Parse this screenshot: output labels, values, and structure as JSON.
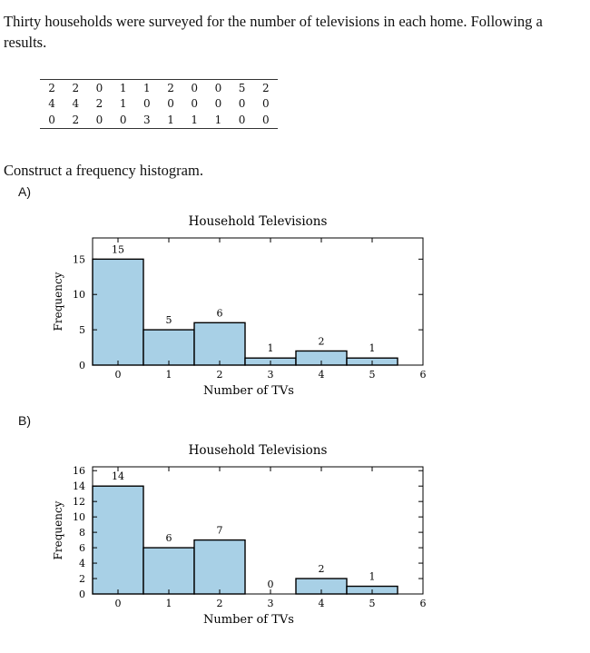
{
  "question": {
    "line1": "Thirty households were surveyed for the number of televisions in each home. Following a",
    "line2": "results.",
    "prompt": "Construct a frequency histogram."
  },
  "table": {
    "rows": [
      [
        "2",
        "2",
        "0",
        "1",
        "1",
        "2",
        "0",
        "0",
        "5",
        "2"
      ],
      [
        "4",
        "4",
        "2",
        "1",
        "0",
        "0",
        "0",
        "0",
        "0",
        "0"
      ],
      [
        "0",
        "2",
        "0",
        "0",
        "3",
        "1",
        "1",
        "1",
        "0",
        "0"
      ]
    ]
  },
  "options": [
    {
      "label": "A)"
    },
    {
      "label": "B)"
    }
  ],
  "chart_data": [
    {
      "type": "bar",
      "title": "Household Televisions",
      "xlabel": "Number of TVs",
      "ylabel": "Frequency",
      "categories": [
        "0",
        "1",
        "2",
        "3",
        "4",
        "5"
      ],
      "values": [
        15,
        5,
        6,
        1,
        2,
        1
      ],
      "data_labels": [
        "15",
        "5",
        "6",
        "1",
        "2",
        "1"
      ],
      "x_ticks": [
        "0",
        "1",
        "2",
        "3",
        "4",
        "5",
        "6"
      ],
      "y_ticks": [
        0,
        5,
        10,
        15
      ],
      "ylim": [
        0,
        18
      ],
      "xlim": [
        -0.5,
        6
      ],
      "bar_color": "#a8d0e6",
      "grid": false
    },
    {
      "type": "bar",
      "title": "Household Televisions",
      "xlabel": "Number of TVs",
      "ylabel": "Frequency",
      "categories": [
        "0",
        "1",
        "2",
        "3",
        "4",
        "5"
      ],
      "values": [
        14,
        6,
        7,
        0,
        2,
        1
      ],
      "data_labels": [
        "14",
        "6",
        "7",
        "0",
        "2",
        "1"
      ],
      "x_ticks": [
        "0",
        "1",
        "2",
        "3",
        "4",
        "5",
        "6"
      ],
      "y_ticks": [
        0,
        2,
        4,
        6,
        8,
        10,
        12,
        14,
        16
      ],
      "ylim": [
        0,
        16.5
      ],
      "xlim": [
        -0.5,
        6
      ],
      "bar_color": "#a8d0e6",
      "grid": false
    }
  ]
}
